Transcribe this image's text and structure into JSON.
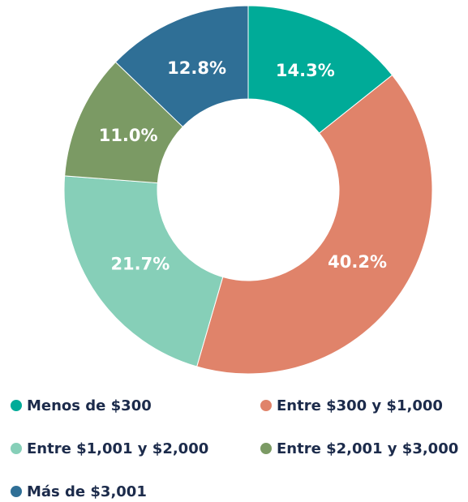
{
  "chart_data": {
    "type": "donut",
    "categories": [
      "Menos de $300",
      "Entre $300 y $1,000",
      "Entre $1,001 y $2,000",
      "Entre $2,001 y $3,000",
      "Más de $3,001"
    ],
    "values": [
      14.3,
      40.2,
      21.7,
      11.0,
      12.8
    ],
    "value_labels": [
      "14.3%",
      "40.2%",
      "21.7%",
      "11.0%",
      "12.8%"
    ],
    "colors": [
      "#00ab98",
      "#e0836a",
      "#86cfb8",
      "#7b9a64",
      "#2f6f96"
    ],
    "legend": "bottom"
  }
}
